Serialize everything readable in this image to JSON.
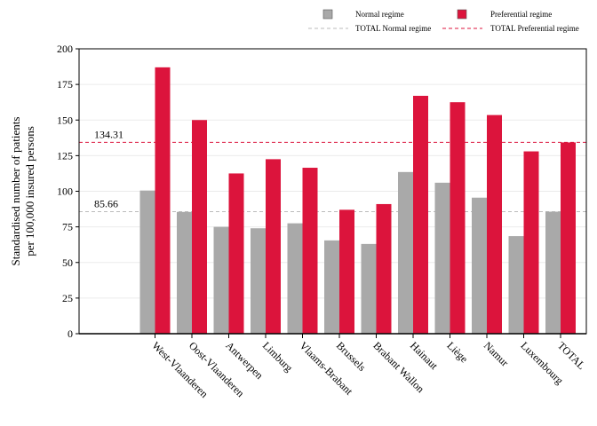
{
  "chart_data": {
    "type": "bar",
    "title": "",
    "xlabel": "",
    "ylabel": [
      "Standardised number of patients",
      "per 100,000 insured persons"
    ],
    "ylim": [
      0,
      200
    ],
    "yticks": [
      0,
      25,
      50,
      75,
      100,
      125,
      150,
      175,
      200
    ],
    "grid": true,
    "legend_position": "top-right",
    "categories": [
      "West-Vlaanderen",
      "Oost-Vlaanderen",
      "Antwerpen",
      "Limburg",
      "Vlaams-Brabant",
      "Brussels",
      "Brabant Wallon",
      "Hainaut",
      "Liège",
      "Namur",
      "Luxembourg",
      "TOTAL"
    ],
    "series": [
      {
        "name": "Normal regime",
        "color": "#a9a9a9",
        "values": [
          100.5,
          85.5,
          75,
          74,
          77.5,
          65.5,
          63,
          113.5,
          106,
          95.5,
          68.5,
          85.66
        ]
      },
      {
        "name": "Preferential regime",
        "color": "#dc143c",
        "values": [
          187,
          150,
          112.5,
          122.5,
          116.5,
          87,
          91,
          167,
          162.5,
          153.5,
          128,
          134.31
        ]
      }
    ],
    "reference_lines": [
      {
        "name": "TOTAL Normal regime",
        "value": 85.66,
        "label": "85.66",
        "color": "#bbbbbb"
      },
      {
        "name": "TOTAL Preferential regime",
        "value": 134.31,
        "label": "134.31",
        "color": "#dc143c"
      }
    ]
  }
}
